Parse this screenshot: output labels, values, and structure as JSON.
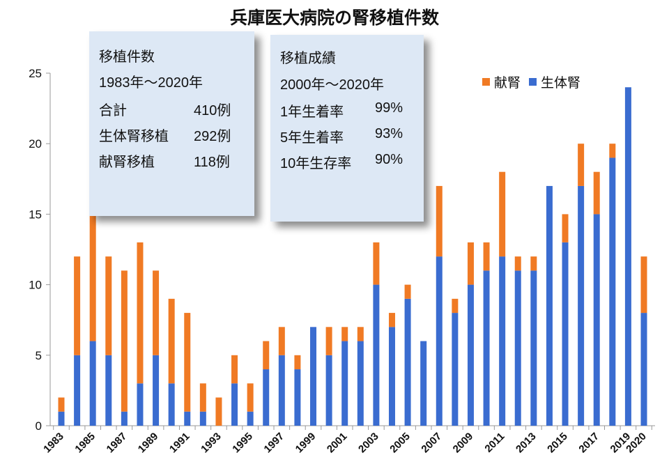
{
  "chart_data": {
    "type": "bar",
    "stacked": true,
    "title": "兵庫医大病院の腎移植件数",
    "xlabel": "",
    "ylabel": "",
    "ylim": [
      0,
      25
    ],
    "yticks": [
      "0",
      "5",
      "10",
      "15",
      "20",
      "25"
    ],
    "categories": [
      "1983",
      "1984",
      "1985",
      "1986",
      "1987",
      "1988",
      "1989",
      "1990",
      "1991",
      "1992",
      "1993",
      "1994",
      "1995",
      "1996",
      "1997",
      "1998",
      "1999",
      "2000",
      "2001",
      "2002",
      "2003",
      "2004",
      "2005",
      "2006",
      "2007",
      "2008",
      "2009",
      "2010",
      "2011",
      "2012",
      "2013",
      "2014",
      "2015",
      "2016",
      "2017",
      "2018",
      "2019",
      "2020"
    ],
    "xtick_labels": [
      "1983",
      "1985",
      "1987",
      "1989",
      "1991",
      "1993",
      "1995",
      "1997",
      "1999",
      "2001",
      "2003",
      "2005",
      "2007",
      "2009",
      "2011",
      "2013",
      "2015",
      "2017",
      "2019",
      "2020"
    ],
    "series": [
      {
        "name": "生体腎",
        "color": "#3a6cd0",
        "values": [
          1,
          5,
          6,
          5,
          1,
          3,
          5,
          3,
          1,
          1,
          0,
          3,
          1,
          4,
          5,
          4,
          7,
          5,
          6,
          6,
          10,
          7,
          9,
          6,
          12,
          8,
          10,
          11,
          12,
          11,
          11,
          17,
          13,
          17,
          15,
          19,
          24,
          8
        ]
      },
      {
        "name": "献腎",
        "color": "#f07a24",
        "values": [
          1,
          7,
          10,
          7,
          10,
          10,
          6,
          6,
          7,
          2,
          2,
          2,
          2,
          2,
          2,
          1,
          0,
          2,
          1,
          1,
          3,
          1,
          1,
          0,
          5,
          1,
          3,
          2,
          6,
          1,
          1,
          0,
          2,
          3,
          3,
          1,
          0,
          4
        ]
      }
    ],
    "legend": {
      "placement": "top-right",
      "items": [
        "献腎",
        "生体腎"
      ]
    }
  },
  "box1": {
    "heading": "移植件数",
    "period": "1983年〜2020年",
    "rows": [
      {
        "label": "合計",
        "value": "410例"
      },
      {
        "label": "生体腎移植",
        "value": "292例"
      },
      {
        "label": "献腎移植",
        "value": "118例"
      }
    ]
  },
  "box2": {
    "heading": "移植成績",
    "period": "2000年〜2020年",
    "rows": [
      {
        "label": "1年生着率",
        "value": "99%"
      },
      {
        "label": "5年生着率",
        "value": "93%"
      },
      {
        "label": "10年生存率",
        "value": "90%"
      }
    ]
  }
}
